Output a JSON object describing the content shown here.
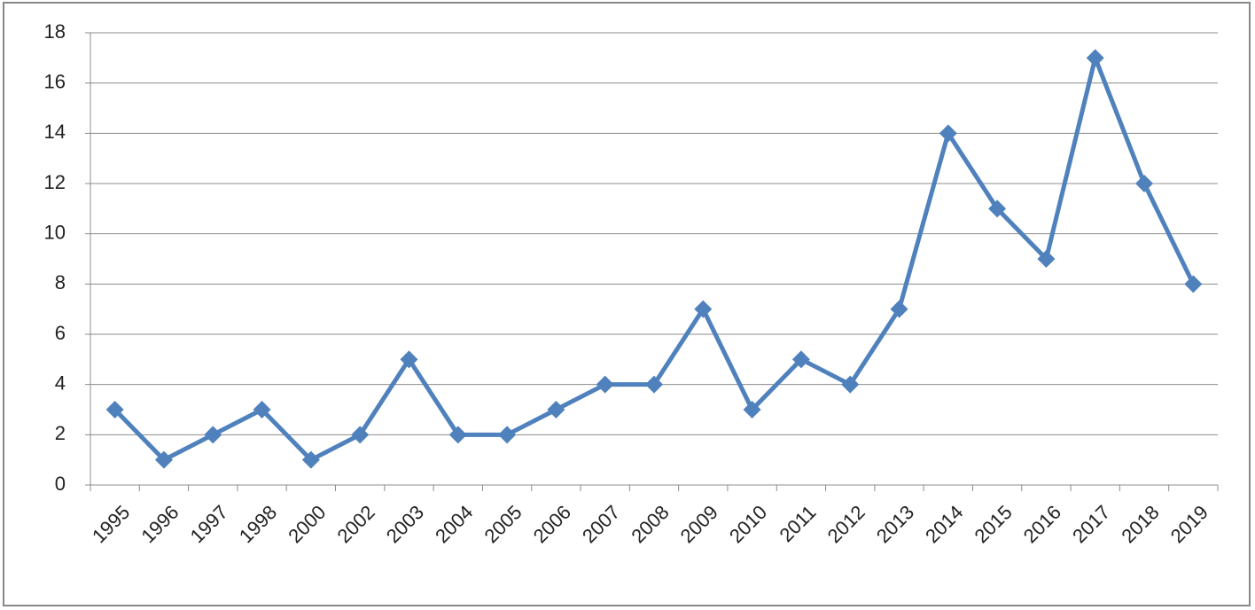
{
  "chart_data": {
    "type": "line",
    "categories": [
      "1995",
      "1996",
      "1997",
      "1998",
      "2000",
      "2002",
      "2003",
      "2004",
      "2005",
      "2006",
      "2007",
      "2008",
      "2009",
      "2010",
      "2011",
      "2012",
      "2013",
      "2014",
      "2015",
      "2016",
      "2017",
      "2018",
      "2019"
    ],
    "values": [
      3,
      1,
      2,
      3,
      1,
      2,
      5,
      2,
      2,
      3,
      4,
      4,
      7,
      3,
      5,
      4,
      7,
      14,
      11,
      9,
      17,
      12,
      8
    ],
    "color": "#4f81bd",
    "ylim": [
      0,
      18
    ],
    "yticks": [
      0,
      2,
      4,
      6,
      8,
      10,
      12,
      14,
      16,
      18
    ],
    "grid": true
  }
}
